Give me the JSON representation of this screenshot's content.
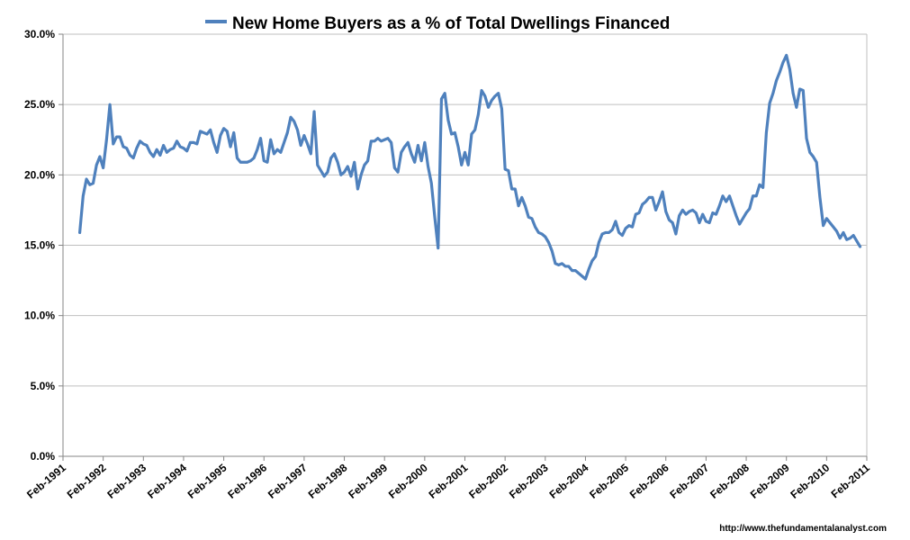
{
  "chart_data": {
    "type": "line",
    "title": "",
    "xlabel": "",
    "ylabel": "",
    "ylim": [
      0,
      30
    ],
    "grid": true,
    "legend": {
      "position": "top",
      "entries": [
        "New Home Buyers as a % of Total Dwellings Financed"
      ]
    },
    "y_ticks": [
      "0.0%",
      "5.0%",
      "10.0%",
      "15.0%",
      "20.0%",
      "25.0%",
      "30.0%"
    ],
    "x_ticks": [
      "Feb-1991",
      "Feb-1992",
      "Feb-1993",
      "Feb-1994",
      "Feb-1995",
      "Feb-1996",
      "Feb-1997",
      "Feb-1998",
      "Feb-1999",
      "Feb-2000",
      "Feb-2001",
      "Feb-2002",
      "Feb-2003",
      "Feb-2004",
      "Feb-2005",
      "Feb-2006",
      "Feb-2007",
      "Feb-2008",
      "Feb-2009",
      "Feb-2010",
      "Feb-2011"
    ],
    "series": [
      {
        "name": "New Home Buyers as a % of Total Dwellings Financed",
        "color": "#4F81BD",
        "points": [
          [
            "Jul-1991",
            15.9
          ],
          [
            "Aug-1991",
            18.5
          ],
          [
            "Sep-1991",
            19.7
          ],
          [
            "Oct-1991",
            19.3
          ],
          [
            "Nov-1991",
            19.4
          ],
          [
            "Dec-1991",
            20.7
          ],
          [
            "Jan-1992",
            21.3
          ],
          [
            "Feb-1992",
            20.5
          ],
          [
            "Mar-1992",
            22.5
          ],
          [
            "Apr-1992",
            25.0
          ],
          [
            "May-1992",
            22.2
          ],
          [
            "Jun-1992",
            22.7
          ],
          [
            "Jul-1992",
            22.7
          ],
          [
            "Aug-1992",
            22.0
          ],
          [
            "Sep-1992",
            21.9
          ],
          [
            "Oct-1992",
            21.4
          ],
          [
            "Nov-1992",
            21.2
          ],
          [
            "Dec-1992",
            21.9
          ],
          [
            "Jan-1993",
            22.4
          ],
          [
            "Feb-1993",
            22.2
          ],
          [
            "Mar-1993",
            22.1
          ],
          [
            "Apr-1993",
            21.6
          ],
          [
            "May-1993",
            21.3
          ],
          [
            "Jun-1993",
            21.8
          ],
          [
            "Jul-1993",
            21.4
          ],
          [
            "Aug-1993",
            22.1
          ],
          [
            "Sep-1993",
            21.6
          ],
          [
            "Oct-1993",
            21.8
          ],
          [
            "Nov-1993",
            21.9
          ],
          [
            "Dec-1993",
            22.4
          ],
          [
            "Jan-1994",
            22.0
          ],
          [
            "Feb-1994",
            21.9
          ],
          [
            "Mar-1994",
            21.7
          ],
          [
            "Apr-1994",
            22.3
          ],
          [
            "May-1994",
            22.3
          ],
          [
            "Jun-1994",
            22.2
          ],
          [
            "Jul-1994",
            23.1
          ],
          [
            "Aug-1994",
            23.0
          ],
          [
            "Sep-1994",
            22.9
          ],
          [
            "Oct-1994",
            23.2
          ],
          [
            "Nov-1994",
            22.3
          ],
          [
            "Dec-1994",
            21.6
          ],
          [
            "Jan-1995",
            22.8
          ],
          [
            "Feb-1995",
            23.3
          ],
          [
            "Mar-1995",
            23.1
          ],
          [
            "Apr-1995",
            22.0
          ],
          [
            "May-1995",
            23.0
          ],
          [
            "Jun-1995",
            21.2
          ],
          [
            "Jul-1995",
            20.9
          ],
          [
            "Aug-1995",
            20.9
          ],
          [
            "Sep-1995",
            20.9
          ],
          [
            "Oct-1995",
            21.0
          ],
          [
            "Nov-1995",
            21.2
          ],
          [
            "Dec-1995",
            21.8
          ],
          [
            "Jan-1996",
            22.6
          ],
          [
            "Feb-1996",
            21.0
          ],
          [
            "Mar-1996",
            20.9
          ],
          [
            "Apr-1996",
            22.5
          ],
          [
            "May-1996",
            21.5
          ],
          [
            "Jun-1996",
            21.8
          ],
          [
            "Jul-1996",
            21.6
          ],
          [
            "Aug-1996",
            22.3
          ],
          [
            "Sep-1996",
            23.0
          ],
          [
            "Oct-1996",
            24.1
          ],
          [
            "Nov-1996",
            23.8
          ],
          [
            "Dec-1996",
            23.2
          ],
          [
            "Jan-1997",
            22.1
          ],
          [
            "Feb-1997",
            22.8
          ],
          [
            "Mar-1997",
            22.2
          ],
          [
            "Apr-1997",
            21.5
          ],
          [
            "May-1997",
            24.5
          ],
          [
            "Jun-1997",
            20.7
          ],
          [
            "Jul-1997",
            20.3
          ],
          [
            "Aug-1997",
            19.9
          ],
          [
            "Sep-1997",
            20.2
          ],
          [
            "Oct-1997",
            21.2
          ],
          [
            "Nov-1997",
            21.5
          ],
          [
            "Dec-1997",
            20.9
          ],
          [
            "Jan-1998",
            20.0
          ],
          [
            "Feb-1998",
            20.2
          ],
          [
            "Mar-1998",
            20.6
          ],
          [
            "Apr-1998",
            19.9
          ],
          [
            "May-1998",
            20.9
          ],
          [
            "Jun-1998",
            19.0
          ],
          [
            "Jul-1998",
            20.0
          ],
          [
            "Aug-1998",
            20.7
          ],
          [
            "Sep-1998",
            21.0
          ],
          [
            "Oct-1998",
            22.4
          ],
          [
            "Nov-1998",
            22.4
          ],
          [
            "Dec-1998",
            22.6
          ],
          [
            "Jan-1999",
            22.4
          ],
          [
            "Feb-1999",
            22.5
          ],
          [
            "Mar-1999",
            22.6
          ],
          [
            "Apr-1999",
            22.3
          ],
          [
            "May-1999",
            20.5
          ],
          [
            "Jun-1999",
            20.2
          ],
          [
            "Jul-1999",
            21.6
          ],
          [
            "Aug-1999",
            22.0
          ],
          [
            "Sep-1999",
            22.3
          ],
          [
            "Oct-1999",
            21.5
          ],
          [
            "Nov-1999",
            20.9
          ],
          [
            "Dec-1999",
            22.1
          ],
          [
            "Jan-2000",
            21.0
          ],
          [
            "Feb-2000",
            22.3
          ],
          [
            "Mar-2000",
            20.6
          ],
          [
            "Apr-2000",
            19.4
          ],
          [
            "May-2000",
            17.0
          ],
          [
            "Jun-2000",
            14.8
          ],
          [
            "Jul-2000",
            25.4
          ],
          [
            "Aug-2000",
            25.8
          ],
          [
            "Sep-2000",
            23.9
          ],
          [
            "Oct-2000",
            22.9
          ],
          [
            "Nov-2000",
            23.0
          ],
          [
            "Dec-2000",
            22.0
          ],
          [
            "Jan-2001",
            20.7
          ],
          [
            "Feb-2001",
            21.6
          ],
          [
            "Mar-2001",
            20.7
          ],
          [
            "Apr-2001",
            22.9
          ],
          [
            "May-2001",
            23.2
          ],
          [
            "Jun-2001",
            24.3
          ],
          [
            "Jul-2001",
            26.0
          ],
          [
            "Aug-2001",
            25.6
          ],
          [
            "Sep-2001",
            24.8
          ],
          [
            "Oct-2001",
            25.3
          ],
          [
            "Nov-2001",
            25.6
          ],
          [
            "Dec-2001",
            25.8
          ],
          [
            "Jan-2002",
            24.7
          ],
          [
            "Feb-2002",
            20.4
          ],
          [
            "Mar-2002",
            20.3
          ],
          [
            "Apr-2002",
            19.0
          ],
          [
            "May-2002",
            19.0
          ],
          [
            "Jun-2002",
            17.8
          ],
          [
            "Jul-2002",
            18.4
          ],
          [
            "Aug-2002",
            17.8
          ],
          [
            "Sep-2002",
            17.0
          ],
          [
            "Oct-2002",
            16.9
          ],
          [
            "Nov-2002",
            16.3
          ],
          [
            "Dec-2002",
            15.9
          ],
          [
            "Jan-2003",
            15.8
          ],
          [
            "Feb-2003",
            15.6
          ],
          [
            "Mar-2003",
            15.2
          ],
          [
            "Apr-2003",
            14.6
          ],
          [
            "May-2003",
            13.7
          ],
          [
            "Jun-2003",
            13.6
          ],
          [
            "Jul-2003",
            13.7
          ],
          [
            "Aug-2003",
            13.5
          ],
          [
            "Sep-2003",
            13.5
          ],
          [
            "Oct-2003",
            13.2
          ],
          [
            "Nov-2003",
            13.2
          ],
          [
            "Dec-2003",
            13.0
          ],
          [
            "Jan-2004",
            12.8
          ],
          [
            "Feb-2004",
            12.6
          ],
          [
            "Mar-2004",
            13.3
          ],
          [
            "Apr-2004",
            13.9
          ],
          [
            "May-2004",
            14.2
          ],
          [
            "Jun-2004",
            15.2
          ],
          [
            "Jul-2004",
            15.8
          ],
          [
            "Aug-2004",
            15.9
          ],
          [
            "Sep-2004",
            15.9
          ],
          [
            "Oct-2004",
            16.1
          ],
          [
            "Nov-2004",
            16.7
          ],
          [
            "Dec-2004",
            15.9
          ],
          [
            "Jan-2005",
            15.7
          ],
          [
            "Feb-2005",
            16.2
          ],
          [
            "Mar-2005",
            16.4
          ],
          [
            "Apr-2005",
            16.3
          ],
          [
            "May-2005",
            17.2
          ],
          [
            "Jun-2005",
            17.3
          ],
          [
            "Jul-2005",
            17.9
          ],
          [
            "Aug-2005",
            18.1
          ],
          [
            "Sep-2005",
            18.4
          ],
          [
            "Oct-2005",
            18.4
          ],
          [
            "Nov-2005",
            17.5
          ],
          [
            "Dec-2005",
            18.1
          ],
          [
            "Jan-2006",
            18.8
          ],
          [
            "Feb-2006",
            17.4
          ],
          [
            "Mar-2006",
            16.8
          ],
          [
            "Apr-2006",
            16.6
          ],
          [
            "May-2006",
            15.8
          ],
          [
            "Jun-2006",
            17.1
          ],
          [
            "Jul-2006",
            17.5
          ],
          [
            "Aug-2006",
            17.2
          ],
          [
            "Sep-2006",
            17.4
          ],
          [
            "Oct-2006",
            17.5
          ],
          [
            "Nov-2006",
            17.3
          ],
          [
            "Dec-2006",
            16.6
          ],
          [
            "Jan-2007",
            17.2
          ],
          [
            "Feb-2007",
            16.7
          ],
          [
            "Mar-2007",
            16.6
          ],
          [
            "Apr-2007",
            17.3
          ],
          [
            "May-2007",
            17.2
          ],
          [
            "Jun-2007",
            17.8
          ],
          [
            "Jul-2007",
            18.5
          ],
          [
            "Aug-2007",
            18.1
          ],
          [
            "Sep-2007",
            18.5
          ],
          [
            "Oct-2007",
            17.8
          ],
          [
            "Nov-2007",
            17.1
          ],
          [
            "Dec-2007",
            16.5
          ],
          [
            "Jan-2008",
            16.9
          ],
          [
            "Feb-2008",
            17.3
          ],
          [
            "Mar-2008",
            17.6
          ],
          [
            "Apr-2008",
            18.5
          ],
          [
            "May-2008",
            18.5
          ],
          [
            "Jun-2008",
            19.3
          ],
          [
            "Jul-2008",
            19.1
          ],
          [
            "Aug-2008",
            23.0
          ],
          [
            "Sep-2008",
            25.1
          ],
          [
            "Oct-2008",
            25.8
          ],
          [
            "Nov-2008",
            26.7
          ],
          [
            "Dec-2008",
            27.3
          ],
          [
            "Jan-2009",
            28.0
          ],
          [
            "Feb-2009",
            28.5
          ],
          [
            "Mar-2009",
            27.5
          ],
          [
            "Apr-2009",
            25.8
          ],
          [
            "May-2009",
            24.8
          ],
          [
            "Jun-2009",
            26.1
          ],
          [
            "Jul-2009",
            26.0
          ],
          [
            "Aug-2009",
            22.6
          ],
          [
            "Sep-2009",
            21.6
          ],
          [
            "Oct-2009",
            21.3
          ],
          [
            "Nov-2009",
            20.9
          ],
          [
            "Dec-2009",
            18.4
          ],
          [
            "Jan-2010",
            16.4
          ],
          [
            "Feb-2010",
            16.9
          ],
          [
            "Mar-2010",
            16.6
          ],
          [
            "Apr-2010",
            16.3
          ],
          [
            "May-2010",
            16.0
          ],
          [
            "Jun-2010",
            15.5
          ],
          [
            "Jul-2010",
            15.9
          ],
          [
            "Aug-2010",
            15.4
          ],
          [
            "Sep-2010",
            15.5
          ],
          [
            "Oct-2010",
            15.7
          ],
          [
            "Nov-2010",
            15.3
          ],
          [
            "Dec-2010",
            14.9
          ]
        ]
      }
    ],
    "source": "http://www.thefundamentalanalyst.com"
  }
}
